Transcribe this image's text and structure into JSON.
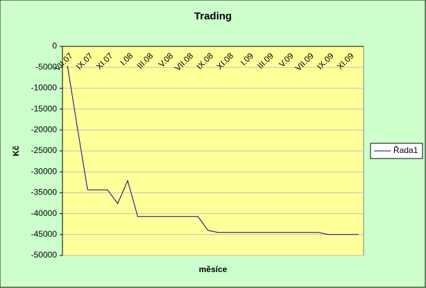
{
  "chart_data": {
    "type": "line",
    "title": "Trading",
    "x_label": "měsíce",
    "y_label": "Kč",
    "categories": [
      "VII.07",
      null,
      "IX.07",
      null,
      "XI.07",
      null,
      "I.08",
      null,
      "III.08",
      null,
      "V.08",
      null,
      "VII.08",
      null,
      "IX.08",
      null,
      "XI.08",
      null,
      "I.09",
      null,
      "III.09",
      null,
      "V.09",
      null,
      "VII.09",
      null,
      "IX.09",
      null,
      "XI.09",
      null
    ],
    "series": [
      {
        "name": "Řada1",
        "color": "#000080",
        "values": [
          -4600,
          -19600,
          -34300,
          -34300,
          -34300,
          -37600,
          -32100,
          -40700,
          -40700,
          -40700,
          -40700,
          -40700,
          -40700,
          -40700,
          -44000,
          -44500,
          -44500,
          -44500,
          -44500,
          -44500,
          -44500,
          -44500,
          -44500,
          -44500,
          -44500,
          -44500,
          -45000,
          -45000,
          -45000,
          -45000
        ]
      }
    ],
    "ylim": [
      -50000,
      0
    ],
    "yticks": [
      0,
      -5000,
      -10000,
      -15000,
      -20000,
      -25000,
      -30000,
      -35000,
      -40000,
      -45000,
      -50000
    ],
    "grid": true,
    "legend": "right"
  }
}
